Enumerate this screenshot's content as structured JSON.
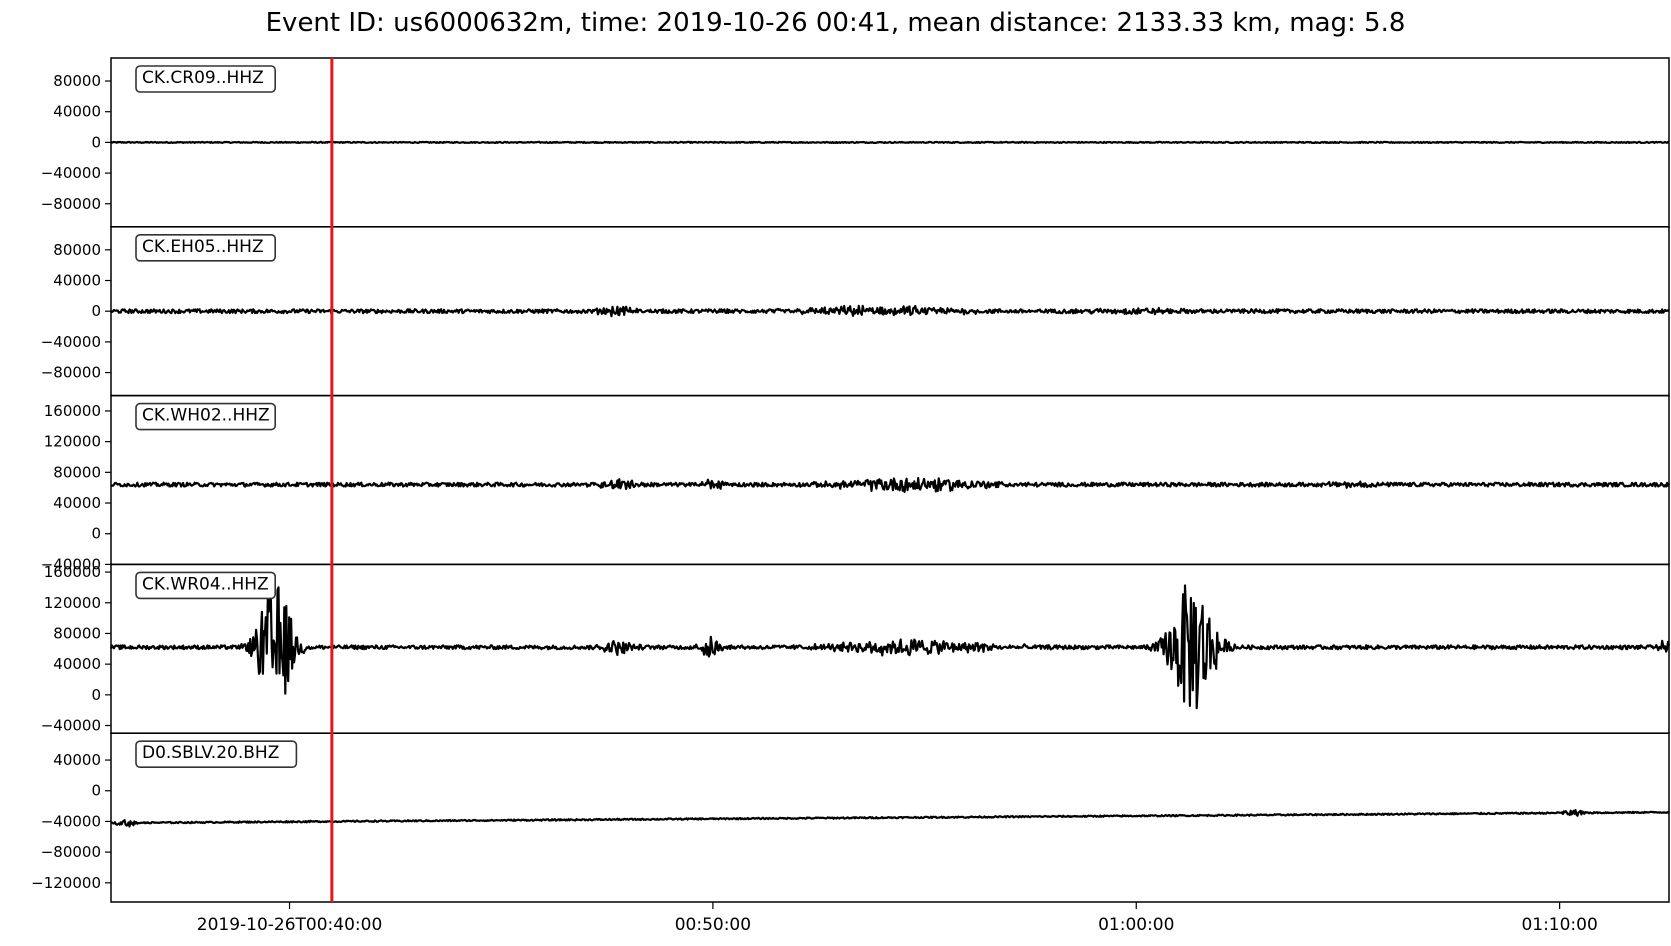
{
  "title": "Event ID: us6000632m, time: 2019-10-26 00:41, mean distance: 2133.33 km, mag: 5.8",
  "chart_data": {
    "type": "line",
    "x_range": [
      "2019-10-26T00:35:47",
      "2019-10-26T01:12:35"
    ],
    "x_ticks": [
      {
        "time": "2019-10-26T00:40:00",
        "label": "2019-10-26T00:40:00"
      },
      {
        "time": "2019-10-26T00:50:00",
        "label": "00:50:00"
      },
      {
        "time": "2019-10-26T01:00:00",
        "label": "01:00:00"
      },
      {
        "time": "2019-10-26T01:10:00",
        "label": "01:10:00"
      }
    ],
    "event_marker_time": "2019-10-26T00:41:00",
    "event_marker_color": "#e8161b",
    "trace_color": "#000000",
    "traces": [
      {
        "label": "CK.CR09..HHZ",
        "ylim": [
          -110000,
          110000
        ],
        "yticks": [
          80000,
          40000,
          0,
          -40000,
          -80000
        ],
        "ytick_labels": [
          "80000",
          "40000",
          "0",
          "−40000",
          "−80000"
        ],
        "baseline": 0,
        "noise": 700,
        "bursts": []
      },
      {
        "label": "CK.EH05..HHZ",
        "ylim": [
          -110000,
          110000
        ],
        "yticks": [
          80000,
          40000,
          0,
          -40000,
          -80000
        ],
        "ytick_labels": [
          "80000",
          "40000",
          "0",
          "−40000",
          "−80000"
        ],
        "baseline": 0,
        "noise": 2500,
        "bursts": [
          {
            "time": "2019-10-26T00:47:45",
            "amp": 5000,
            "width_s": 50
          },
          {
            "time": "2019-10-26T00:54:00",
            "amp": 6000,
            "width_s": 200
          },
          {
            "time": "2019-10-26T01:00:00",
            "amp": 3000,
            "width_s": 120
          }
        ]
      },
      {
        "label": "CK.WH02..HHZ",
        "ylim": [
          -40000,
          180000
        ],
        "yticks": [
          160000,
          120000,
          80000,
          40000,
          0,
          -40000
        ],
        "ytick_labels": [
          "160000",
          "120000",
          "80000",
          "40000",
          "0",
          "−40000"
        ],
        "baseline": 64000,
        "noise": 2500,
        "bursts": [
          {
            "time": "2019-10-26T00:47:45",
            "amp": 8000,
            "width_s": 40
          },
          {
            "time": "2019-10-26T00:50:00",
            "amp": 5000,
            "width_s": 40
          },
          {
            "time": "2019-10-26T00:54:45",
            "amp": 9000,
            "width_s": 180
          },
          {
            "time": "2019-10-26T01:05:00",
            "amp": 3000,
            "width_s": 60
          }
        ]
      },
      {
        "label": "CK.WR04..HHZ",
        "ylim": [
          -50000,
          170000
        ],
        "yticks": [
          160000,
          120000,
          80000,
          40000,
          0,
          -40000
        ],
        "ytick_labels": [
          "160000",
          "120000",
          "80000",
          "40000",
          "0",
          "−40000"
        ],
        "baseline": 62000,
        "noise": 2500,
        "bursts": [
          {
            "time": "2019-10-26T00:39:40",
            "amp": 85000,
            "width_s": 45
          },
          {
            "time": "2019-10-26T00:47:45",
            "amp": 9000,
            "width_s": 40
          },
          {
            "time": "2019-10-26T00:49:55",
            "amp": 15000,
            "width_s": 25
          },
          {
            "time": "2019-10-26T00:54:45",
            "amp": 10000,
            "width_s": 200
          },
          {
            "time": "2019-10-26T01:01:20",
            "amp": 90000,
            "width_s": 55
          },
          {
            "time": "2019-10-26T01:12:30",
            "amp": 8000,
            "width_s": 15
          }
        ]
      },
      {
        "label": "D0.SBLV.20.BHZ",
        "ylim": [
          -145000,
          75000
        ],
        "yticks": [
          40000,
          0,
          -40000,
          -80000,
          -120000
        ],
        "ytick_labels": [
          "40000",
          "0",
          "−40000",
          "−80000",
          "−120000"
        ],
        "baseline_start": -42000,
        "baseline_end": -28000,
        "noise": 900,
        "bursts": [
          {
            "time": "2019-10-26T00:36:10",
            "amp": 5000,
            "width_s": 25
          },
          {
            "time": "2019-10-26T01:10:20",
            "amp": 4000,
            "width_s": 30
          }
        ]
      }
    ]
  }
}
